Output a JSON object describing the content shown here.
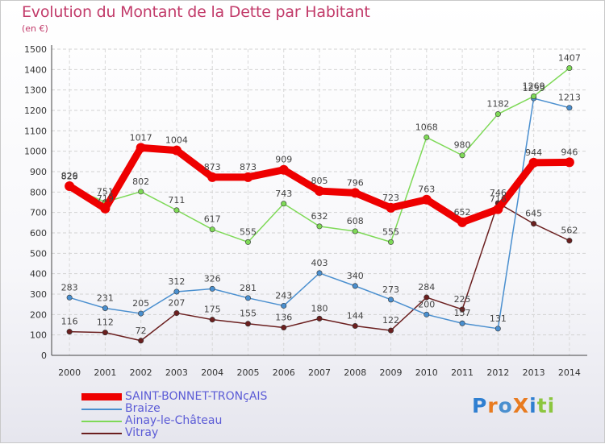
{
  "title": "Evolution du Montant de la Dette par Habitant",
  "subtitle": "(en €)",
  "logo": "ProXiti",
  "chart_data": {
    "type": "line",
    "x": [
      "2000",
      "2001",
      "2002",
      "2003",
      "2004",
      "2005",
      "2006",
      "2007",
      "2008",
      "2009",
      "2010",
      "2011",
      "2012",
      "2013",
      "2014"
    ],
    "ylim": [
      0,
      1500
    ],
    "yticks": [
      "0",
      "100",
      "200",
      "300",
      "400",
      "500",
      "600",
      "700",
      "800",
      "900",
      "1000",
      "1100",
      "1200",
      "1300",
      "1400",
      "1500"
    ],
    "grid": true,
    "legend_position": "bottom-left",
    "series": [
      {
        "name": "SAINT-BONNET-TRONçAIS",
        "color": "#ee0000",
        "values": [
          829,
          719,
          1017,
          1004,
          873,
          873,
          909,
          805,
          796,
          723,
          763,
          652,
          716,
          944,
          946
        ],
        "labels": [
          "829",
          "719",
          "1017",
          "1004",
          "873",
          "873",
          "909",
          "805",
          "796",
          "723",
          "763",
          "652",
          "716",
          "944",
          "946"
        ]
      },
      {
        "name": "Braize",
        "color": "#4a8fcf",
        "values": [
          283,
          231,
          205,
          312,
          326,
          281,
          243,
          403,
          340,
          273,
          200,
          157,
          131,
          1259,
          1213
        ],
        "labels": [
          "283",
          "231",
          "205",
          "312",
          "326",
          "281",
          "243",
          "403",
          "340",
          "273",
          "200",
          "157",
          "131",
          "1259",
          "1213"
        ]
      },
      {
        "name": "Ainay-le-Château",
        "color": "#7ed957",
        "values": [
          826,
          751,
          802,
          711,
          617,
          555,
          743,
          632,
          608,
          555,
          1068,
          980,
          1182,
          1269,
          1407
        ],
        "labels": [
          "826",
          "751",
          "802",
          "711",
          "617",
          "555",
          "743",
          "632",
          "608",
          "555",
          "1068",
          "980",
          "1182",
          "1269",
          "1407"
        ]
      },
      {
        "name": "Vitray",
        "color": "#6b1f1f",
        "values": [
          116,
          112,
          72,
          207,
          175,
          155,
          136,
          180,
          144,
          122,
          284,
          225,
          746,
          645,
          562
        ],
        "labels": [
          "116",
          "112",
          "72",
          "207",
          "175",
          "155",
          "136",
          "180",
          "144",
          "122",
          "284",
          "225",
          "746",
          "645",
          "562"
        ]
      }
    ]
  }
}
